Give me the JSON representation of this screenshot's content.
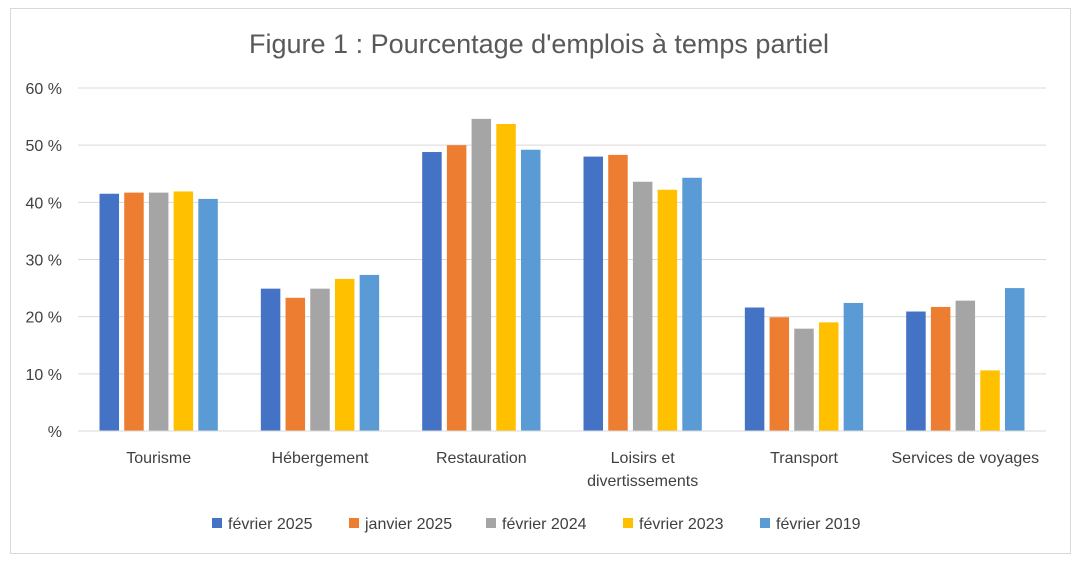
{
  "chart_data": {
    "type": "bar",
    "title": "Figure 1 : Pourcentage d'emplois à temps partiel",
    "categories": [
      [
        "Tourisme"
      ],
      [
        "Hébergement"
      ],
      [
        "Restauration"
      ],
      [
        "Loisirs et",
        "divertissements"
      ],
      [
        "Transport"
      ],
      [
        "Services de voyages"
      ]
    ],
    "series": [
      {
        "name": "février 2025",
        "color": "#4472C4",
        "values": [
          41.5,
          24.9,
          48.8,
          48.0,
          21.6,
          20.9
        ]
      },
      {
        "name": "janvier 2025",
        "color": "#ED7D31",
        "values": [
          41.7,
          23.3,
          50.0,
          48.3,
          19.9,
          21.7
        ]
      },
      {
        "name": "février 2024",
        "color": "#A5A5A5",
        "values": [
          41.7,
          24.9,
          54.6,
          43.6,
          17.9,
          22.8
        ]
      },
      {
        "name": "février 2023",
        "color": "#FFC000",
        "values": [
          41.9,
          26.6,
          53.7,
          42.2,
          19.0,
          10.6
        ]
      },
      {
        "name": "février 2019",
        "color": "#5B9BD5",
        "values": [
          40.6,
          27.3,
          49.2,
          44.3,
          22.4,
          25.0
        ]
      }
    ],
    "yticks": [
      "%",
      "10 %",
      "20 %",
      "30 %",
      "40 %",
      "50 %",
      "60 %"
    ],
    "ylim": [
      0,
      60
    ],
    "grid": true,
    "legend": "bottom",
    "xlabel": "",
    "ylabel": ""
  }
}
